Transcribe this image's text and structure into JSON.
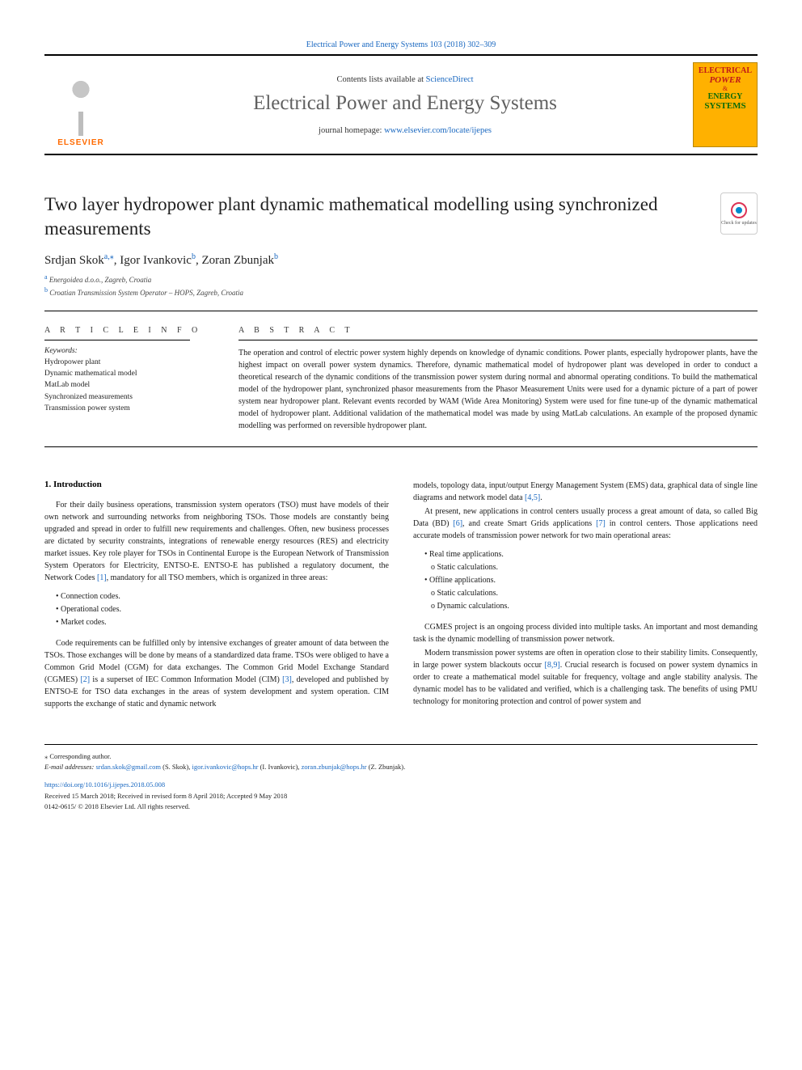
{
  "header": {
    "top_journal_cite": "Electrical Power and Energy Systems 103 (2018) 302–309",
    "contents_line_prefix": "Contents lists available at ",
    "contents_line_link": "ScienceDirect",
    "journal_name": "Electrical Power and Energy Systems",
    "homepage_prefix": "journal homepage: ",
    "homepage_link": "www.elsevier.com/locate/ijepes",
    "elsevier_label": "ELSEVIER",
    "cover": {
      "line1": "ELECTRICAL",
      "line2": "POWER",
      "line3": "ENERGY",
      "line4": "SYSTEMS"
    },
    "updates_label": "Check for updates"
  },
  "article": {
    "title": "Two layer hydropower plant dynamic mathematical modelling using synchronized measurements",
    "authors_html": "Srdjan Skok",
    "author1": {
      "name": "Srdjan Skok",
      "sup": "a,⁎"
    },
    "author2": {
      "name": "Igor Ivankovic",
      "sup": "b"
    },
    "author3": {
      "name": "Zoran Zbunjak",
      "sup": "b"
    },
    "affiliations": {
      "a_sup": "a",
      "a_text": "Energoidea d.o.o., Zagreb, Croatia",
      "b_sup": "b",
      "b_text": "Croatian Transmission System Operator – HOPS, Zagreb, Croatia"
    }
  },
  "info": {
    "heading": "A R T I C L E  I N F O",
    "keywords_label": "Keywords:",
    "keywords": [
      "Hydropower plant",
      "Dynamic mathematical model",
      "MatLab model",
      "Synchronized measurements",
      "Transmission power system"
    ]
  },
  "abstract": {
    "heading": "A B S T R A C T",
    "text": "The operation and control of electric power system highly depends on knowledge of dynamic conditions. Power plants, especially hydropower plants, have the highest impact on overall power system dynamics. Therefore, dynamic mathematical model of hydropower plant was developed in order to conduct a theoretical research of the dynamic conditions of the transmission power system during normal and abnormal operating conditions. To build the mathematical model of the hydropower plant, synchronized phasor measurements from the Phasor Measurement Units were used for a dynamic picture of a part of power system near hydropower plant. Relevant events recorded by WAM (Wide Area Monitoring) System were used for fine tune-up of the dynamic mathematical model of hydropower plant. Additional validation of the mathematical model was made by using MatLab calculations. An example of the proposed dynamic modelling was performed on reversible hydropower plant."
  },
  "body": {
    "sec1_heading": "1. Introduction",
    "left": {
      "p1": "For their daily business operations, transmission system operators (TSO) must have models of their own network and surrounding networks from neighboring TSOs. Those models are constantly being upgraded and spread in order to fulfill new requirements and challenges. Often, new business processes are dictated by security constraints, integrations of renewable energy resources (RES) and electricity market issues. Key role player for TSOs in Continental Europe is the European Network of Transmission System Operators for Electricity, ENTSO-E. ENTSO-E has published a regulatory document, the Network Codes ",
      "p1_ref": "[1]",
      "p1_tail": ", mandatory for all TSO members, which is organized in three areas:",
      "bullets1": [
        "Connection codes.",
        "Operational codes.",
        "Market codes."
      ],
      "p2": "Code requirements can be fulfilled only by intensive exchanges of greater amount of data between the TSOs. Those exchanges will be done by means of a standardized data frame. TSOs were obliged to have a Common Grid Model (CGM) for data exchanges. The Common Grid Model Exchange Standard (CGMES) ",
      "p2_ref": "[2]",
      "p2_mid": " is a superset of IEC Common Information Model (CIM) ",
      "p2_ref2": "[3]",
      "p2_tail": ", developed and published by ENTSO-E for TSO data exchanges in the areas of system development and system operation. CIM supports the exchange of static and dynamic network"
    },
    "right": {
      "p1": "models, topology data, input/output Energy Management System (EMS) data, graphical data of single line diagrams and network model data ",
      "p1_ref": "[4,5]",
      "p1_tail": ".",
      "p2": "At present, new applications in control centers usually process a great amount of data, so called Big Data (BD) ",
      "p2_ref": "[6]",
      "p2_mid": ", and create Smart Grids applications ",
      "p2_ref2": "[7]",
      "p2_tail": " in control centers. Those applications need accurate models of transmission power network for two main operational areas:",
      "bullets2": [
        {
          "text": "Real time applications.",
          "sub": false
        },
        {
          "text": "Static calculations.",
          "sub": true
        },
        {
          "text": "Offline applications.",
          "sub": false
        },
        {
          "text": "Static calculations.",
          "sub": true
        },
        {
          "text": "Dynamic calculations.",
          "sub": true
        }
      ],
      "p3": "CGMES project is an ongoing process divided into multiple tasks. An important and most demanding task is the dynamic modelling of transmission power network.",
      "p4": "Modern transmission power systems are often in operation close to their stability limits. Consequently, in large power system blackouts occur ",
      "p4_ref": "[8,9]",
      "p4_tail": ". Crucial research is focused on power system dynamics in order to create a mathematical model suitable for frequency, voltage and angle stability analysis. The dynamic model has to be validated and verified, which is a challenging task. The benefits of using PMU technology for monitoring protection and control of power system and"
    }
  },
  "footer": {
    "corresponding": "⁎ Corresponding author.",
    "email_label": "E-mail addresses: ",
    "emails": [
      {
        "addr": "srdan.skok@gmail.com",
        "who": "(S. Skok)"
      },
      {
        "addr": "igor.ivankovic@hops.hr",
        "who": "(I. Ivankovic)"
      },
      {
        "addr": "zoran.zbunjak@hops.hr",
        "who": "(Z. Zbunjak)"
      }
    ],
    "doi": "https://doi.org/10.1016/j.ijepes.2018.05.008",
    "received": "Received 15 March 2018; Received in revised form 8 April 2018; Accepted 9 May 2018",
    "copyright": "0142-0615/ © 2018 Elsevier Ltd. All rights reserved."
  },
  "colors": {
    "link": "#1867c0",
    "elsevier_orange": "#ff6a00",
    "cover_bg": "#ffb100",
    "cover_red": "#c01818",
    "cover_green": "#0a6b0a"
  }
}
